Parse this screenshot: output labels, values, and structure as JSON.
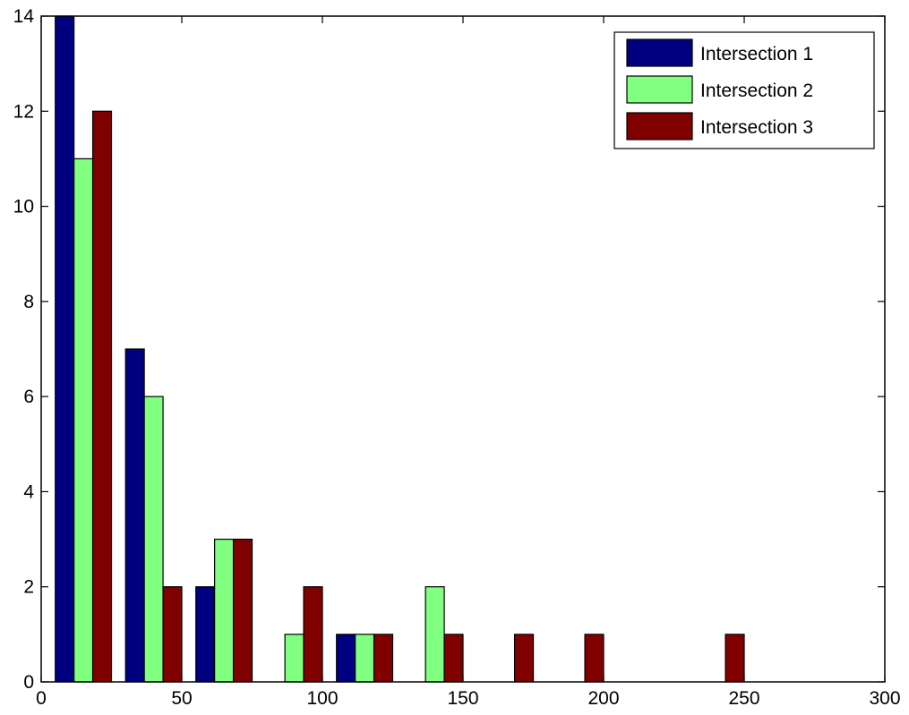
{
  "chart_data": {
    "type": "bar",
    "x": [
      15,
      40,
      65,
      90,
      115,
      140,
      165,
      190,
      215,
      240
    ],
    "series": [
      {
        "name": "Intersection 1",
        "values": [
          14,
          7,
          2,
          0,
          1,
          0,
          0,
          0,
          0,
          0
        ],
        "color": "#000080"
      },
      {
        "name": "Intersection 2",
        "values": [
          11,
          6,
          3,
          1,
          1,
          2,
          0,
          0,
          0,
          0
        ],
        "color": "#80FF80"
      },
      {
        "name": "Intersection 3",
        "values": [
          12,
          2,
          3,
          2,
          1,
          1,
          1,
          1,
          0,
          1
        ],
        "color": "#800000"
      }
    ],
    "xlim": [
      0,
      300
    ],
    "ylim": [
      0,
      14
    ],
    "xticks": [
      0,
      50,
      100,
      150,
      200,
      250,
      300
    ],
    "yticks": [
      0,
      2,
      4,
      6,
      8,
      10,
      12,
      14
    ],
    "title": "",
    "xlabel": "",
    "ylabel": "",
    "grid": false,
    "legend_position": "top-right"
  }
}
